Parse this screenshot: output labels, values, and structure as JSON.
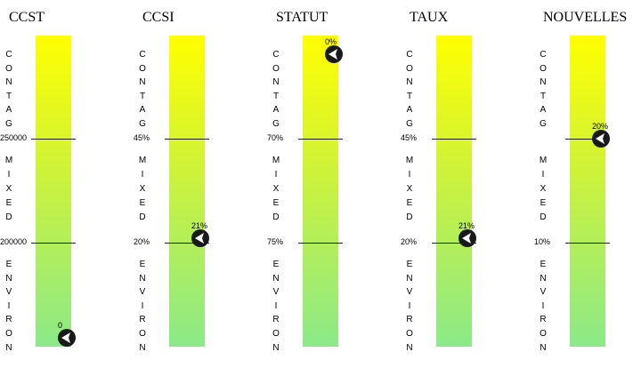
{
  "zones": {
    "top": [
      "C",
      "O",
      "N",
      "T",
      "A",
      "G"
    ],
    "middle": [
      "M",
      "I",
      "X",
      "E",
      "D"
    ],
    "bottom": [
      "E",
      "N",
      "V",
      "I",
      "R",
      "O",
      "N"
    ]
  },
  "panels": [
    {
      "title": "CCST",
      "upper_threshold": "250000",
      "lower_threshold": "200000",
      "value": "0",
      "level": 0.03
    },
    {
      "title": "CCSI",
      "upper_threshold": "45%",
      "lower_threshold": "20%",
      "value": "21%",
      "level": 0.35
    },
    {
      "title": "STATUT",
      "upper_threshold": "70%",
      "lower_threshold": "75%",
      "value": "0%",
      "level": 0.94
    },
    {
      "title": "TAUX",
      "upper_threshold": "45%",
      "lower_threshold": "20%",
      "value": "21%",
      "level": 0.35
    },
    {
      "title": "NOUVELLES",
      "upper_threshold": "",
      "lower_threshold": "10%",
      "value": "20%",
      "level": 0.67
    }
  ],
  "colors": {
    "bar_top": "#ffff00",
    "bar_bottom": "#8ce98a",
    "indicator": "#1a1a1a"
  }
}
